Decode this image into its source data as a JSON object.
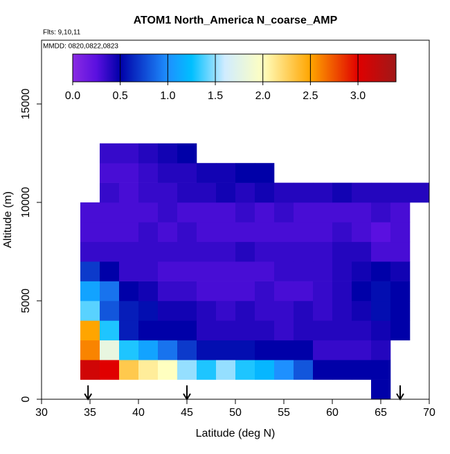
{
  "chart_data": {
    "type": "heatmap",
    "title": "ATOM1 North_America N_coarse_AMP",
    "notes": [
      "Flts: 9,10,11",
      "MMDD: 0820,0822,0823"
    ],
    "x_label": "Latitude (deg N)",
    "y_label": "Altitude (m)",
    "xlim": [
      30,
      70
    ],
    "ylim": [
      0,
      18240
    ],
    "xticks": [
      30,
      35,
      40,
      45,
      50,
      55,
      60,
      65,
      70
    ],
    "yticks": [
      0,
      5000,
      10000,
      15000
    ],
    "x_bins": [
      34,
      36,
      38,
      40,
      42,
      44,
      46,
      48,
      50,
      52,
      54,
      56,
      58,
      60,
      62,
      64,
      66,
      68,
      70
    ],
    "y_bins": [
      0,
      1000,
      2000,
      3000,
      4000,
      5000,
      6000,
      7000,
      8000,
      9000,
      10000,
      11000,
      12000,
      13000
    ],
    "z": [
      [
        null,
        null,
        null,
        null,
        null,
        null,
        null,
        null,
        null,
        null,
        null,
        null,
        null,
        null,
        null,
        0.5,
        null,
        null
      ],
      [
        3.1,
        3.0,
        2.3,
        2.1,
        2.0,
        1.5,
        1.3,
        1.5,
        1.3,
        1.2,
        1.0,
        0.8,
        0.5,
        0.5,
        0.5,
        0.5,
        null,
        null
      ],
      [
        2.6,
        1.8,
        1.3,
        1.1,
        0.9,
        0.7,
        0.55,
        0.55,
        0.55,
        0.5,
        0.5,
        0.5,
        0.35,
        0.35,
        0.35,
        0.4,
        null,
        null
      ],
      [
        2.5,
        1.3,
        0.6,
        0.5,
        0.5,
        0.5,
        0.4,
        0.4,
        0.4,
        0.4,
        0.35,
        0.4,
        0.4,
        0.4,
        0.4,
        0.45,
        0.5,
        null
      ],
      [
        1.4,
        0.8,
        0.6,
        0.55,
        0.45,
        0.45,
        0.4,
        0.35,
        0.4,
        0.35,
        0.35,
        0.4,
        0.35,
        0.4,
        0.45,
        0.55,
        0.5,
        null
      ],
      [
        1.1,
        0.9,
        0.5,
        0.45,
        0.35,
        0.35,
        0.3,
        0.3,
        0.3,
        0.35,
        0.3,
        0.3,
        0.35,
        0.4,
        0.5,
        0.55,
        0.5,
        null
      ],
      [
        0.7,
        0.5,
        0.35,
        0.35,
        0.3,
        0.3,
        0.3,
        0.3,
        0.3,
        0.3,
        0.35,
        0.35,
        0.35,
        0.4,
        0.45,
        0.5,
        0.45,
        null
      ],
      [
        0.35,
        0.35,
        0.35,
        0.35,
        0.35,
        0.35,
        0.35,
        0.35,
        0.4,
        0.35,
        0.35,
        0.35,
        0.35,
        0.4,
        0.4,
        0.3,
        0.3,
        null
      ],
      [
        0.3,
        0.3,
        0.3,
        0.35,
        0.3,
        0.35,
        0.3,
        0.3,
        0.3,
        0.3,
        0.3,
        0.3,
        0.3,
        0.35,
        0.3,
        0.25,
        0.3,
        null
      ],
      [
        0.3,
        0.3,
        0.3,
        0.3,
        0.35,
        0.3,
        0.3,
        0.3,
        0.35,
        0.3,
        0.35,
        0.3,
        0.3,
        0.3,
        0.3,
        0.35,
        0.3,
        null
      ],
      [
        null,
        0.35,
        0.3,
        0.35,
        0.35,
        0.4,
        0.4,
        0.45,
        0.4,
        0.45,
        0.4,
        0.4,
        0.4,
        0.45,
        0.4,
        0.4,
        0.4,
        0.4
      ],
      [
        null,
        0.3,
        0.3,
        0.35,
        0.4,
        0.4,
        0.45,
        0.45,
        0.5,
        0.5,
        null,
        null,
        null,
        null,
        null,
        null,
        null,
        null
      ],
      [
        null,
        0.35,
        0.35,
        0.4,
        0.45,
        0.5,
        null,
        null,
        null,
        null,
        null,
        null,
        null,
        null,
        null,
        null,
        null,
        null
      ]
    ],
    "colorbar_lim": [
      0,
      3.4
    ],
    "colorbar_ticks": [
      {
        "value": 0,
        "label": "0.0"
      },
      0.5,
      {
        "value": 1,
        "label": "1.0"
      },
      1.5,
      {
        "value": 2,
        "label": "2.0"
      },
      2.5,
      {
        "value": 3,
        "label": "3.0"
      }
    ],
    "colorscale": [
      {
        "value": 0,
        "color": "#8a2be2"
      },
      {
        "value": 0.25,
        "color": "#5a10e0"
      },
      {
        "value": 0.5,
        "color": "#0000a8"
      },
      {
        "value": 1.0,
        "color": "#1e90ff"
      },
      {
        "value": 1.25,
        "color": "#00bfff"
      },
      {
        "value": 1.6,
        "color": "#d0ecff"
      },
      {
        "value": 2.0,
        "color": "#ffffc0"
      },
      {
        "value": 2.5,
        "color": "#ffa500"
      },
      {
        "value": 3.0,
        "color": "#e00000"
      },
      {
        "value": 3.4,
        "color": "#a01818"
      }
    ],
    "arrows_x": [
      34.8,
      45,
      67
    ]
  }
}
